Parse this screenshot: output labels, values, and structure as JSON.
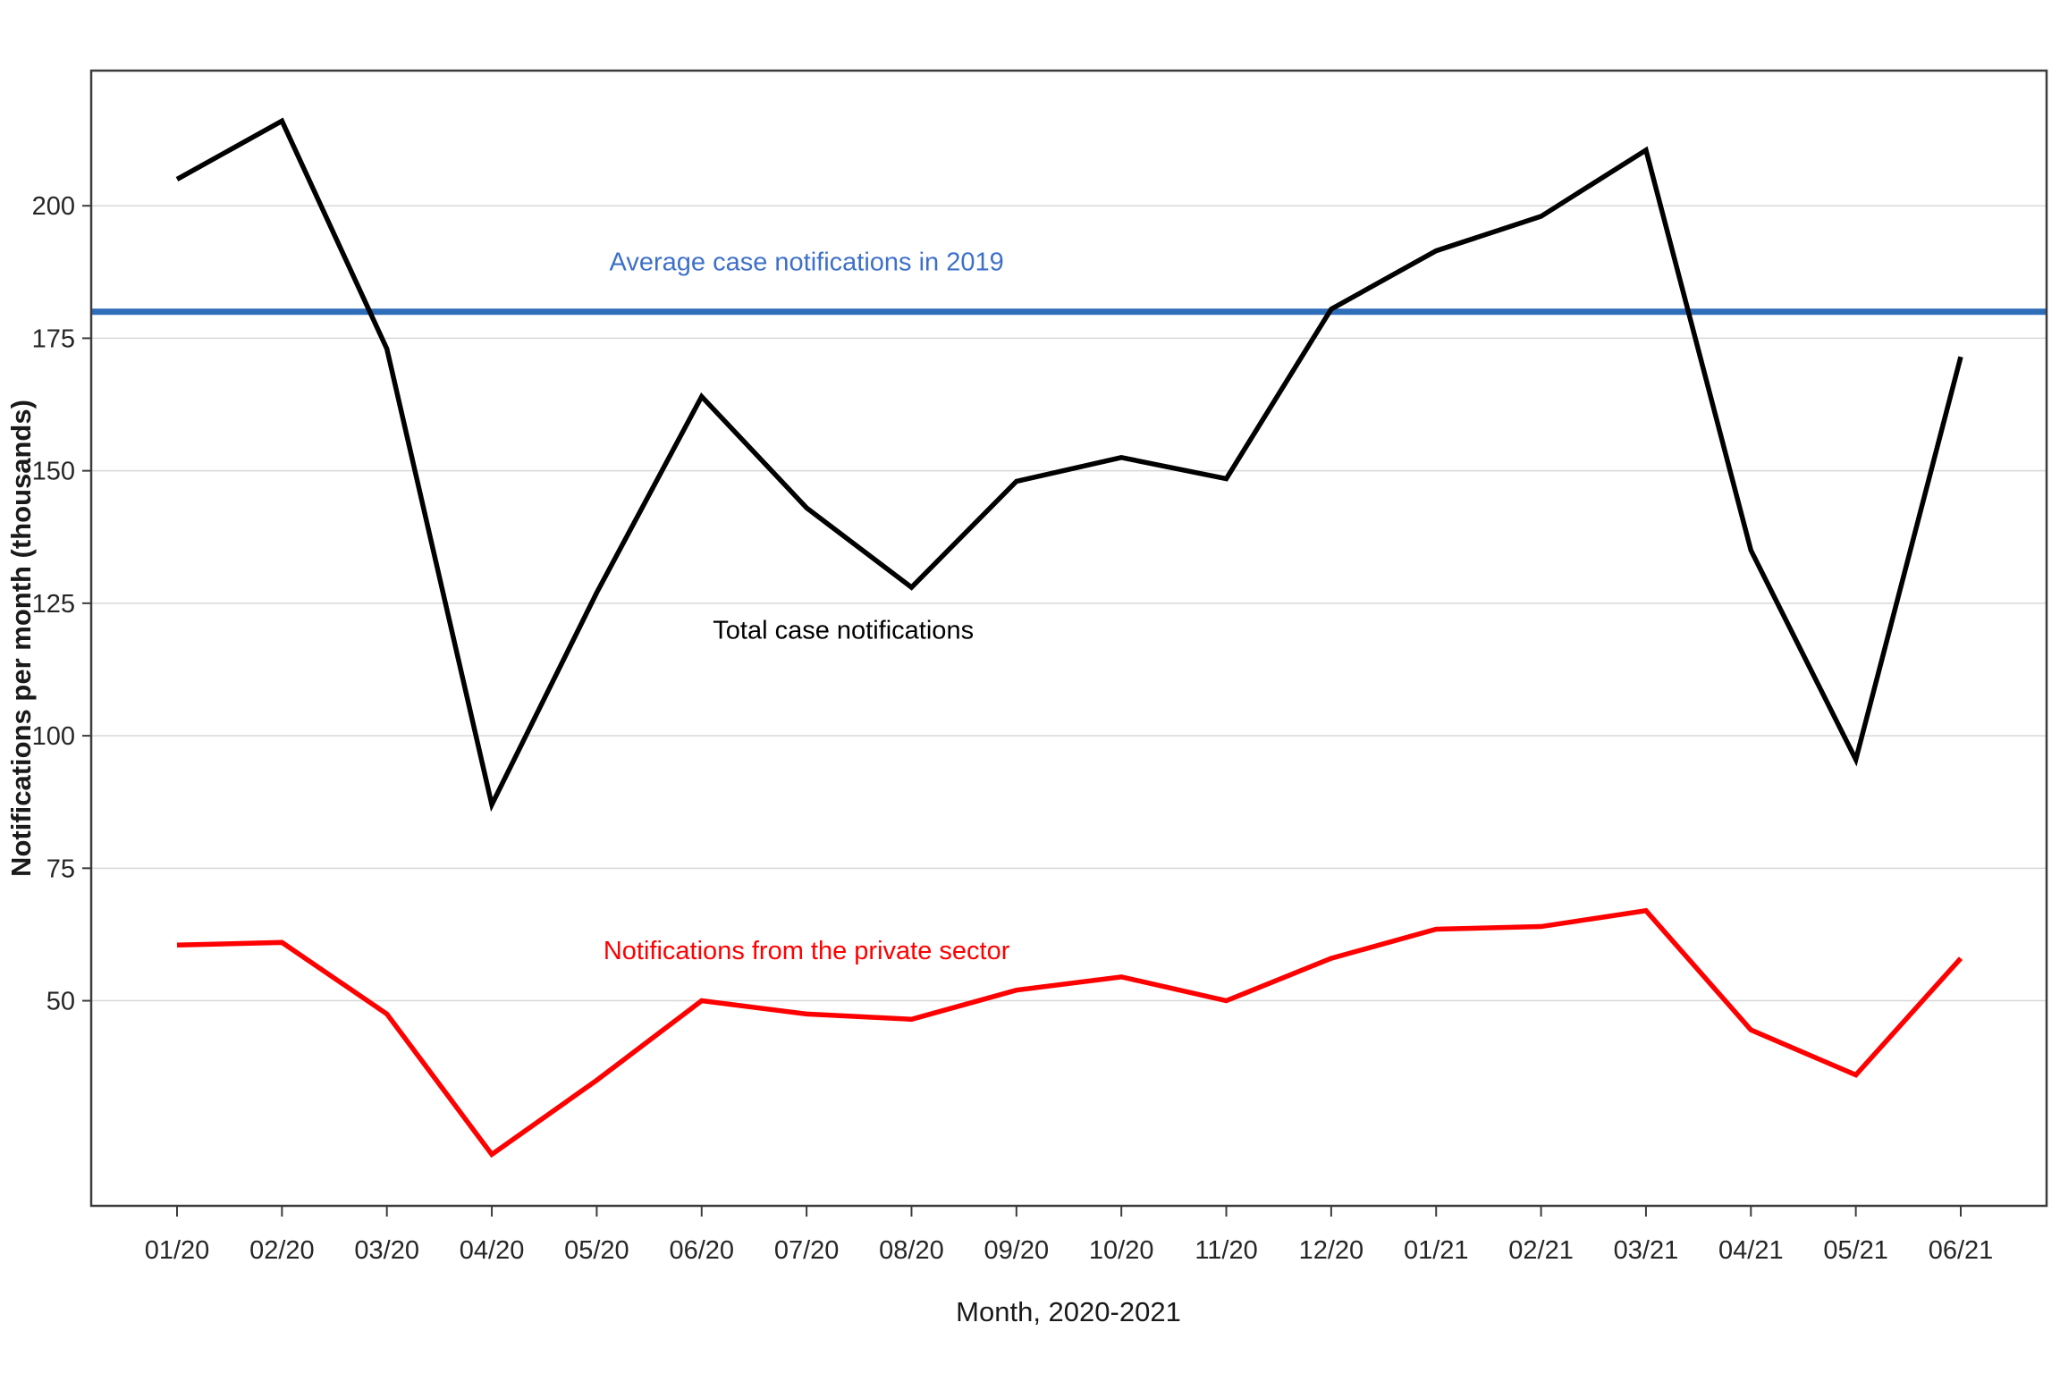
{
  "chart_data": {
    "type": "line",
    "title": "",
    "xlabel": "Month, 2020-2021",
    "ylabel": "Notifications per month (thousands)",
    "categories": [
      "01/20",
      "02/20",
      "03/20",
      "04/20",
      "05/20",
      "06/20",
      "07/20",
      "08/20",
      "09/20",
      "10/20",
      "11/20",
      "12/20",
      "01/21",
      "02/21",
      "03/21",
      "04/21",
      "05/21",
      "06/21"
    ],
    "series": [
      {
        "name": "Total case notifications",
        "color": "#000000",
        "values": [
          205,
          216,
          173,
          87,
          127,
          164,
          143,
          128,
          148,
          152.5,
          148.5,
          180.5,
          191.5,
          198,
          210.5,
          135,
          95.5,
          171.5
        ]
      },
      {
        "name": "Notifications from the private sector",
        "color": "#ff0000",
        "values": [
          60.5,
          61,
          47.5,
          21,
          35,
          50,
          47.5,
          46.5,
          52,
          54.5,
          50,
          58,
          63.5,
          64,
          67,
          44.5,
          36,
          58
        ]
      }
    ],
    "reference_line": {
      "value": 180,
      "color": "#2e6db9"
    },
    "annotations": [
      {
        "text": "Average case notifications in 2019",
        "x": 6.0,
        "y": 189.5,
        "color": "#3e70c8"
      },
      {
        "text": "Total case notifications",
        "x": 6.35,
        "y": 120,
        "color": "#000000"
      },
      {
        "text": "Notifications from the private sector",
        "x": 6.0,
        "y": 59.5,
        "color": "#ff0000"
      }
    ],
    "yticks": [
      50,
      75,
      100,
      125,
      150,
      175,
      200
    ],
    "ylim": [
      11.3,
      225.5
    ],
    "grid": "horizontal-only",
    "legend": "none",
    "grid_color": "#d8d8d8",
    "spine_color": "#3c3c3c"
  }
}
